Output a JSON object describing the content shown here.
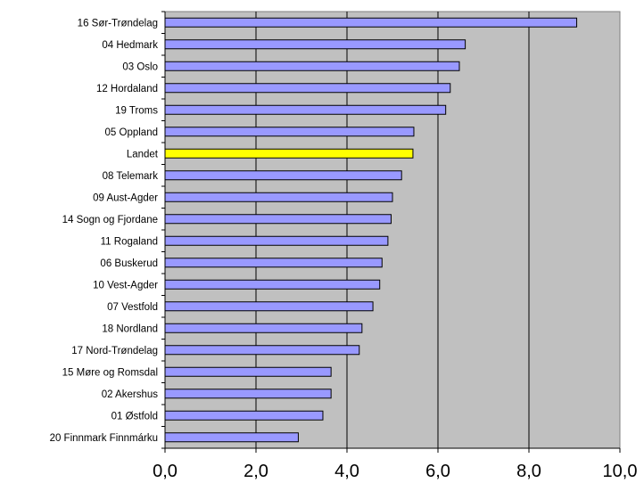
{
  "chart_data": {
    "type": "bar",
    "orientation": "horizontal",
    "categories": [
      "16 Sør-Trøndelag",
      "04 Hedmark",
      "03 Oslo",
      "12 Hordaland",
      "19 Troms",
      "05 Oppland",
      "Landet",
      "08 Telemark",
      "09 Aust-Agder",
      "14 Sogn og Fjordane",
      "11 Rogaland",
      "06 Buskerud",
      "10 Vest-Agder",
      "07 Vestfold",
      "18 Nordland",
      "17 Nord-Trøndelag",
      "15 Møre og Romsdal",
      "02 Akershus",
      "01 Østfold",
      "20 Finnmark Finnmárku"
    ],
    "values": [
      9.05,
      6.6,
      6.47,
      6.27,
      6.17,
      5.47,
      5.45,
      5.2,
      5.0,
      4.97,
      4.9,
      4.77,
      4.72,
      4.57,
      4.33,
      4.27,
      3.65,
      3.65,
      3.47,
      2.93
    ],
    "highlight_index": 6,
    "xlim": [
      0,
      10
    ],
    "xticks": [
      "0,0",
      "2,0",
      "4,0",
      "6,0",
      "8,0",
      "10,0"
    ],
    "title": "",
    "xlabel": "",
    "ylabel": "",
    "grid": "vertical",
    "legend": "none",
    "colors": {
      "bar": "#9999ff",
      "bar_highlight": "#ffff00",
      "bar_edge": "#000000",
      "plot_bg": "#c0c0c0",
      "gridline": "#000000"
    }
  }
}
